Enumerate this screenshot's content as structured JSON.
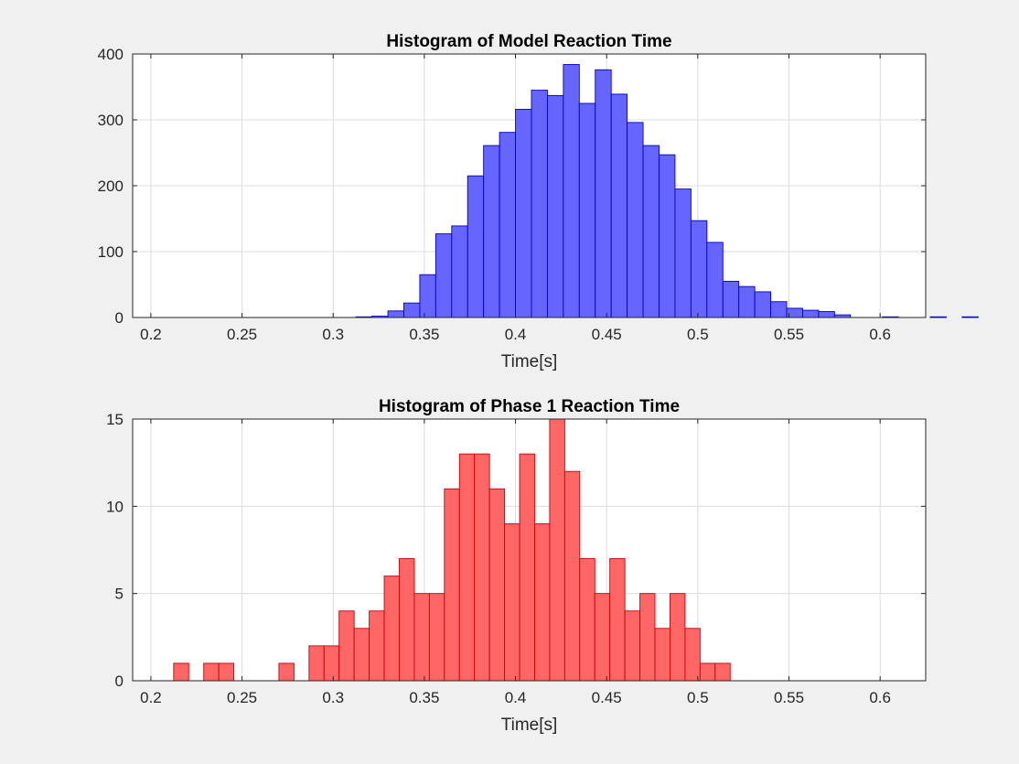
{
  "figure": {
    "background": "#f0f0f0"
  },
  "chart_data": [
    {
      "type": "bar",
      "title": "Histogram of Model Reaction Time",
      "xlabel": "Time[s]",
      "ylabel": "",
      "xlim": [
        0.19,
        0.625
      ],
      "ylim": [
        0,
        400
      ],
      "xticks": [
        "0.2",
        "0.25",
        "0.3",
        "0.35",
        "0.4",
        "0.45",
        "0.5",
        "0.55",
        "0.6"
      ],
      "yticks": [
        "0",
        "100",
        "200",
        "300",
        "400"
      ],
      "grid": true,
      "color": "#6666ff",
      "edge_color": "#0000c8",
      "bin_width": 0.00875,
      "bin_start": 0.3125,
      "values": [
        1,
        2,
        10,
        22,
        65,
        127,
        139,
        215,
        261,
        281,
        316,
        345,
        337,
        384,
        325,
        376,
        339,
        296,
        261,
        247,
        195,
        147,
        114,
        55,
        47,
        39,
        24,
        14,
        11,
        9,
        4,
        0,
        0,
        1,
        0,
        0,
        1,
        0,
        1
      ]
    },
    {
      "type": "bar",
      "title": "Histogram of Phase 1 Reaction Time",
      "xlabel": "Time[s]",
      "ylabel": "",
      "xlim": [
        0.19,
        0.625
      ],
      "ylim": [
        0,
        15
      ],
      "xticks": [
        "0.2",
        "0.25",
        "0.3",
        "0.35",
        "0.4",
        "0.45",
        "0.5",
        "0.55",
        "0.6"
      ],
      "yticks": [
        "0",
        "5",
        "10",
        "15"
      ],
      "grid": true,
      "color": "#ff6666",
      "edge_color": "#cc0000",
      "bin_width": 0.00825,
      "bin_start": 0.2125,
      "values": [
        1,
        0,
        1,
        1,
        0,
        0,
        0,
        1,
        0,
        2,
        2,
        4,
        3,
        4,
        6,
        7,
        5,
        5,
        11,
        13,
        13,
        11,
        9,
        13,
        9,
        15,
        12,
        7,
        5,
        7,
        4,
        5,
        3,
        5,
        3,
        1,
        1
      ]
    }
  ]
}
